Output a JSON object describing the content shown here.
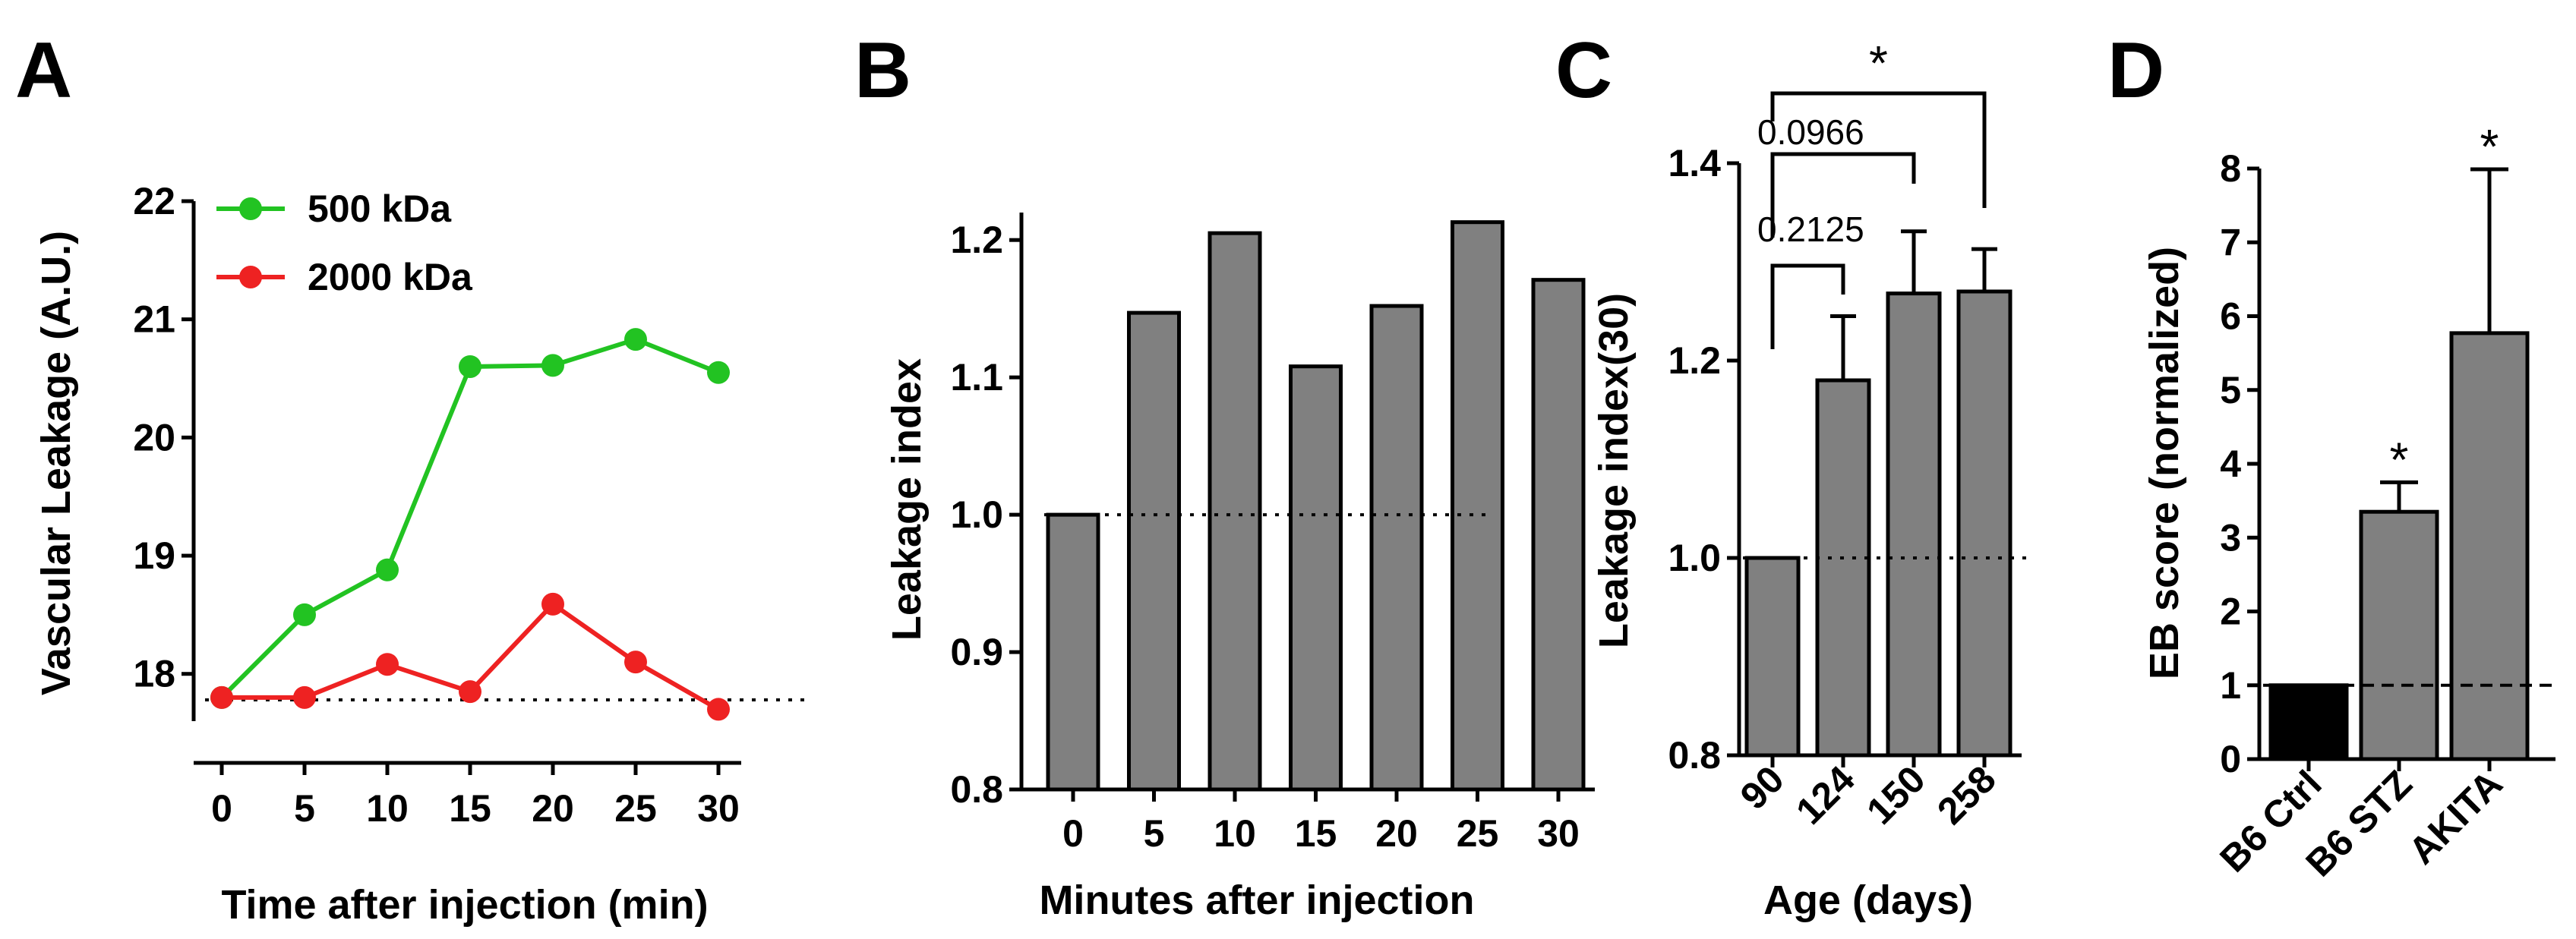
{
  "chart_data": [
    {
      "panel": "A",
      "type": "line",
      "x": [
        0,
        5,
        10,
        15,
        20,
        25,
        30
      ],
      "series": [
        {
          "name": "500 kDa",
          "color": "#22c322",
          "values": [
            17.8,
            18.5,
            18.88,
            20.6,
            20.61,
            20.83,
            20.55
          ]
        },
        {
          "name": "2000 kDa",
          "color": "#ee2222",
          "values": [
            17.8,
            17.8,
            18.08,
            17.85,
            18.59,
            18.1,
            17.7
          ]
        }
      ],
      "xlabel": "Time after injection (min)",
      "ylabel": "Vascular Leakage (A.U.)",
      "ylim": [
        17.6,
        22
      ],
      "yticks": [
        "18",
        "19",
        "20",
        "21",
        "22"
      ],
      "xticks": [
        "0",
        "5",
        "10",
        "15",
        "20",
        "25",
        "30"
      ],
      "reference_line": 17.78,
      "legend": "top-left"
    },
    {
      "panel": "B",
      "type": "bar",
      "categories": [
        "0",
        "5",
        "10",
        "15",
        "20",
        "25",
        "30"
      ],
      "values": [
        1.0,
        1.147,
        1.205,
        1.108,
        1.152,
        1.213,
        1.171
      ],
      "bar_color": "#808080",
      "xlabel": "Minutes after injection",
      "ylabel": "Leakage index",
      "ylim": [
        0.8,
        1.22
      ],
      "yticks": [
        "0.8",
        "0.9",
        "1.0",
        "1.1",
        "1.2"
      ],
      "reference_line": 1.0
    },
    {
      "panel": "C",
      "type": "bar",
      "categories": [
        "90",
        "124",
        "150",
        "258"
      ],
      "values": [
        1.0,
        1.18,
        1.268,
        1.27
      ],
      "errors": [
        0,
        0.065,
        0.063,
        0.043
      ],
      "bar_color": "#808080",
      "xlabel": "Age (days)",
      "ylabel": "Leakage index(30)",
      "ylim": [
        0.8,
        1.4
      ],
      "yticks": [
        "0.8",
        "1.0",
        "1.2",
        "1.4"
      ],
      "reference_line": 1.0,
      "comparisons": [
        {
          "from": "90",
          "to": "124",
          "label": "0.2125"
        },
        {
          "from": "90",
          "to": "150",
          "label": "0.0966"
        },
        {
          "from": "90",
          "to": "258",
          "label": "*"
        }
      ]
    },
    {
      "panel": "D",
      "type": "bar",
      "categories": [
        "B6 Ctrl",
        "B6 STZ",
        "AKITA"
      ],
      "values": [
        1.0,
        3.35,
        5.77
      ],
      "errors": [
        0,
        0.4,
        2.22
      ],
      "bar_colors": [
        "#000000",
        "#808080",
        "#808080"
      ],
      "significance": [
        "",
        "*",
        "*"
      ],
      "xlabel": "",
      "ylabel": "EB score (normalized)",
      "ylim": [
        0,
        8
      ],
      "yticks": [
        "0",
        "1",
        "2",
        "3",
        "4",
        "5",
        "6",
        "7",
        "8"
      ],
      "reference_line": 1.0
    }
  ]
}
